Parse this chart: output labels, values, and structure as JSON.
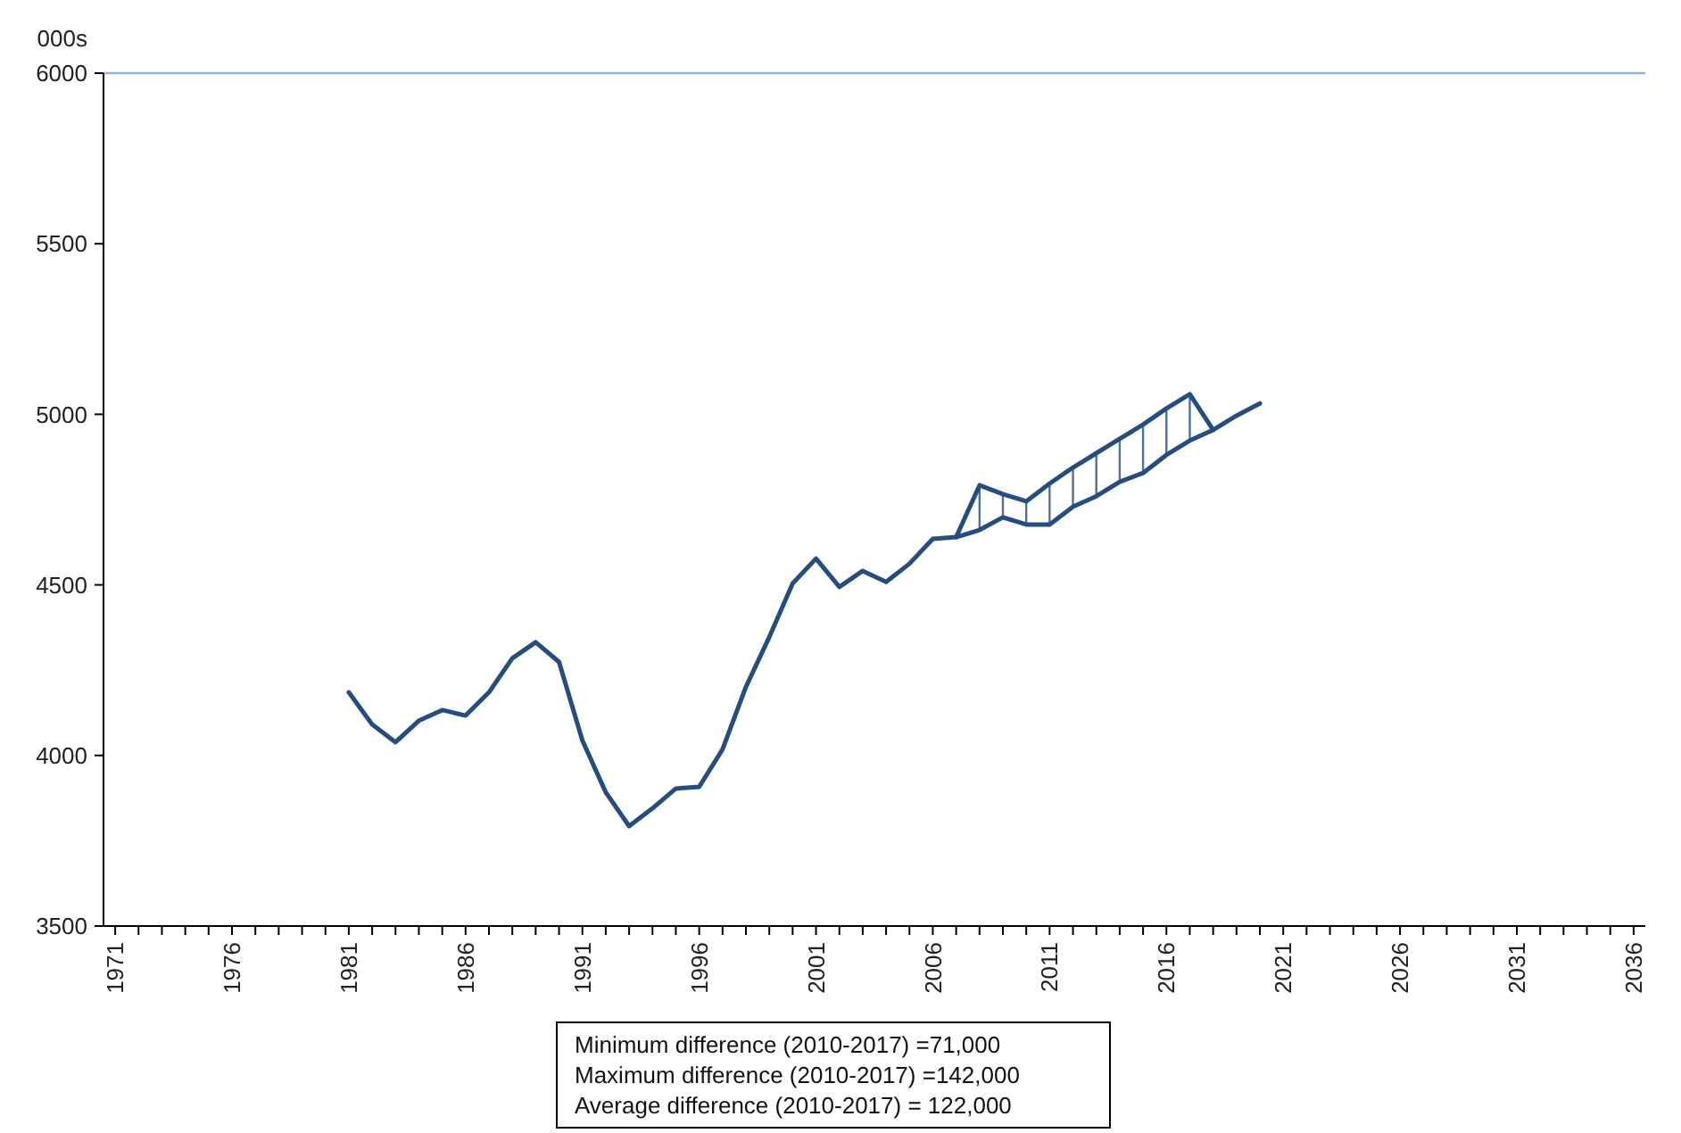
{
  "chart_data": {
    "type": "line",
    "ylabel": "000s",
    "x": [
      1981,
      1982,
      1983,
      1984,
      1985,
      1986,
      1987,
      1988,
      1989,
      1990,
      1991,
      1992,
      1993,
      1994,
      1995,
      1996,
      1997,
      1998,
      1999,
      2000,
      2001,
      2002,
      2003,
      2004,
      2005,
      2006,
      2007,
      2008,
      2009,
      2010,
      2011,
      2012,
      2013,
      2014,
      2015,
      2016,
      2017,
      2018,
      2019,
      2020
    ],
    "series": [
      {
        "color": "#264d80",
        "values": [
          4185,
          4091,
          4039,
          4102,
          4133,
          4117,
          4185,
          4285,
          4332,
          4274,
          4044,
          3892,
          3793,
          3845,
          3903,
          3908,
          4018,
          4201,
          4347,
          4504,
          4577,
          4494,
          4541,
          4509,
          4562,
          4635,
          4640,
          4661,
          4698,
          4677,
          4677,
          4729,
          4760,
          4802,
          4828,
          4881,
          4923,
          4954,
          4996,
          5032
        ]
      },
      {
        "color": "#264d80",
        "values": [
          null,
          null,
          null,
          null,
          null,
          null,
          null,
          null,
          null,
          null,
          null,
          null,
          null,
          null,
          null,
          null,
          null,
          null,
          null,
          null,
          null,
          null,
          null,
          null,
          null,
          null,
          4640,
          4792,
          4766,
          4745,
          4797,
          4844,
          4886,
          4928,
          4970,
          5017,
          5059,
          4954,
          null,
          null
        ]
      }
    ],
    "xlim": [
      1970.5,
      2036.5
    ],
    "xticks": [
      1971,
      {
        "value": 1972,
        "label": null
      },
      {
        "value": 1973,
        "label": null
      },
      {
        "value": 1974,
        "label": null
      },
      {
        "value": 1975,
        "label": null
      },
      1976,
      {
        "value": 1977,
        "label": null
      },
      {
        "value": 1978,
        "label": null
      },
      {
        "value": 1979,
        "label": null
      },
      {
        "value": 1980,
        "label": null
      },
      1981,
      {
        "value": 1982,
        "label": null
      },
      {
        "value": 1983,
        "label": null
      },
      {
        "value": 1984,
        "label": null
      },
      {
        "value": 1985,
        "label": null
      },
      1986,
      {
        "value": 1987,
        "label": null
      },
      {
        "value": 1988,
        "label": null
      },
      {
        "value": 1989,
        "label": null
      },
      {
        "value": 1990,
        "label": null
      },
      1991,
      {
        "value": 1992,
        "label": null
      },
      {
        "value": 1993,
        "label": null
      },
      {
        "value": 1994,
        "label": null
      },
      {
        "value": 1995,
        "label": null
      },
      1996,
      {
        "value": 1997,
        "label": null
      },
      {
        "value": 1998,
        "label": null
      },
      {
        "value": 1999,
        "label": null
      },
      {
        "value": 2000,
        "label": null
      },
      2001,
      {
        "value": 2002,
        "label": null
      },
      {
        "value": 2003,
        "label": null
      },
      {
        "value": 2004,
        "label": null
      },
      {
        "value": 2005,
        "label": null
      },
      2006,
      {
        "value": 2007,
        "label": null
      },
      {
        "value": 2008,
        "label": null
      },
      {
        "value": 2009,
        "label": null
      },
      {
        "value": 2010,
        "label": null
      },
      2011,
      {
        "value": 2012,
        "label": null
      },
      {
        "value": 2013,
        "label": null
      },
      {
        "value": 2014,
        "label": null
      },
      {
        "value": 2015,
        "label": null
      },
      2016,
      {
        "value": 2017,
        "label": null
      },
      {
        "value": 2018,
        "label": null
      },
      {
        "value": 2019,
        "label": null
      },
      {
        "value": 2020,
        "label": null
      },
      2021,
      {
        "value": 2022,
        "label": null
      },
      {
        "value": 2023,
        "label": null
      },
      {
        "value": 2024,
        "label": null
      },
      {
        "value": 2025,
        "label": null
      },
      2026,
      {
        "value": 2027,
        "label": null
      },
      {
        "value": 2028,
        "label": null
      },
      {
        "value": 2029,
        "label": null
      },
      {
        "value": 2030,
        "label": null
      },
      2031,
      {
        "value": 2032,
        "label": null
      },
      {
        "value": 2033,
        "label": null
      },
      {
        "value": 2034,
        "label": null
      },
      {
        "value": 2035,
        "label": null
      },
      2036
    ],
    "ylim": [
      3500,
      6000
    ],
    "yticks": [
      3500,
      4000,
      4500,
      5000,
      5500,
      6000
    ],
    "grid": false,
    "marker": "none",
    "line_style": "solid",
    "annotations": [
      "Minimum difference (2010-2017) =71,000",
      "Maximum difference (2010-2017) =142,000",
      "Average difference (2010-2017) = 122,000"
    ]
  }
}
